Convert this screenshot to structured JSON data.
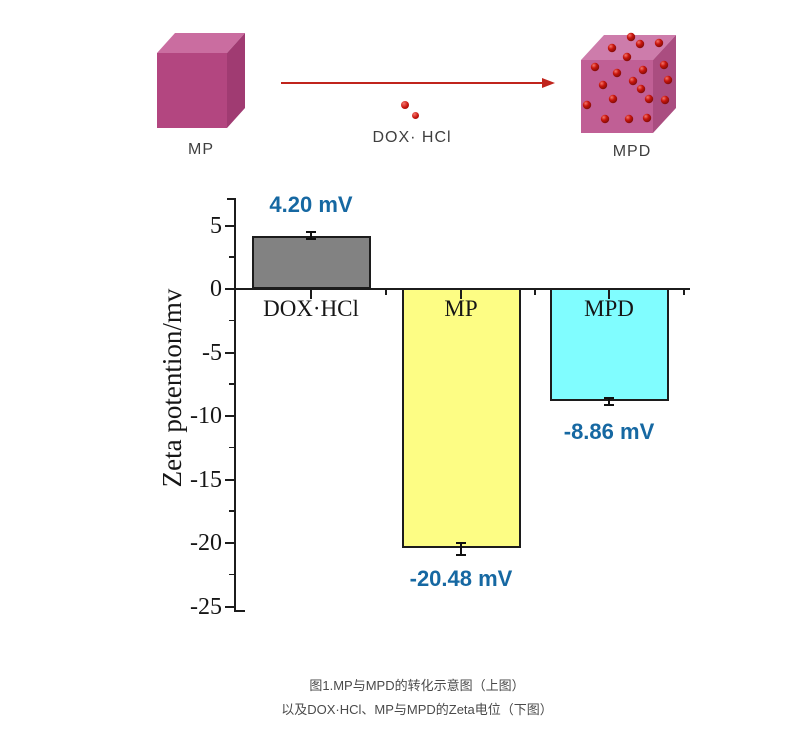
{
  "figure": {
    "schematic": {
      "mp_label": "MP",
      "arrow_label": "DOX· HCl",
      "mpd_label": "MPD",
      "arrow_color": "#c0241c",
      "dot_color": "#c8150d",
      "dot_highlight": "#f4756c",
      "dot_shadow": "#7c0b07",
      "mp_cube": {
        "front": "#b34680",
        "top": "#ca6da0",
        "side": "#a03b72"
      },
      "mpd_cube": {
        "front": "#c05f95",
        "top": "#cd7cab",
        "side": "#aa4d80"
      },
      "label_color": "#3f3f3f"
    },
    "caption_line1": "图1.MP与MPD的转化示意图（上图）",
    "caption_line2": "以及DOX·HCl、MP与MPD的Zeta电位（下图）"
  },
  "chart_data": {
    "type": "bar",
    "categories": [
      "DOX·HCl",
      "MP",
      "MPD"
    ],
    "values": [
      4.2,
      -20.48,
      -8.86
    ],
    "errors": [
      0.3,
      0.45,
      0.25
    ],
    "value_labels": [
      "4.20 mV",
      "-20.48 mV",
      "-8.86 mV"
    ],
    "bar_colors": [
      "#828282",
      "#fdfd84",
      "#80fdff"
    ],
    "bar_border_color": "#1c1c1c",
    "axis_color": "#1c1c1c",
    "value_label_color": "#1668a2",
    "title": "",
    "xlabel": "",
    "ylabel": "Zeta potention/mv",
    "yticks": [
      5,
      0,
      -5,
      -10,
      -15,
      -20,
      -25
    ],
    "yminorticks": [
      2.5,
      -2.5,
      -7.5,
      -12.5,
      -17.5,
      -22.5
    ],
    "ylim": [
      -25,
      7.2
    ],
    "grid": false,
    "legend": false
  }
}
